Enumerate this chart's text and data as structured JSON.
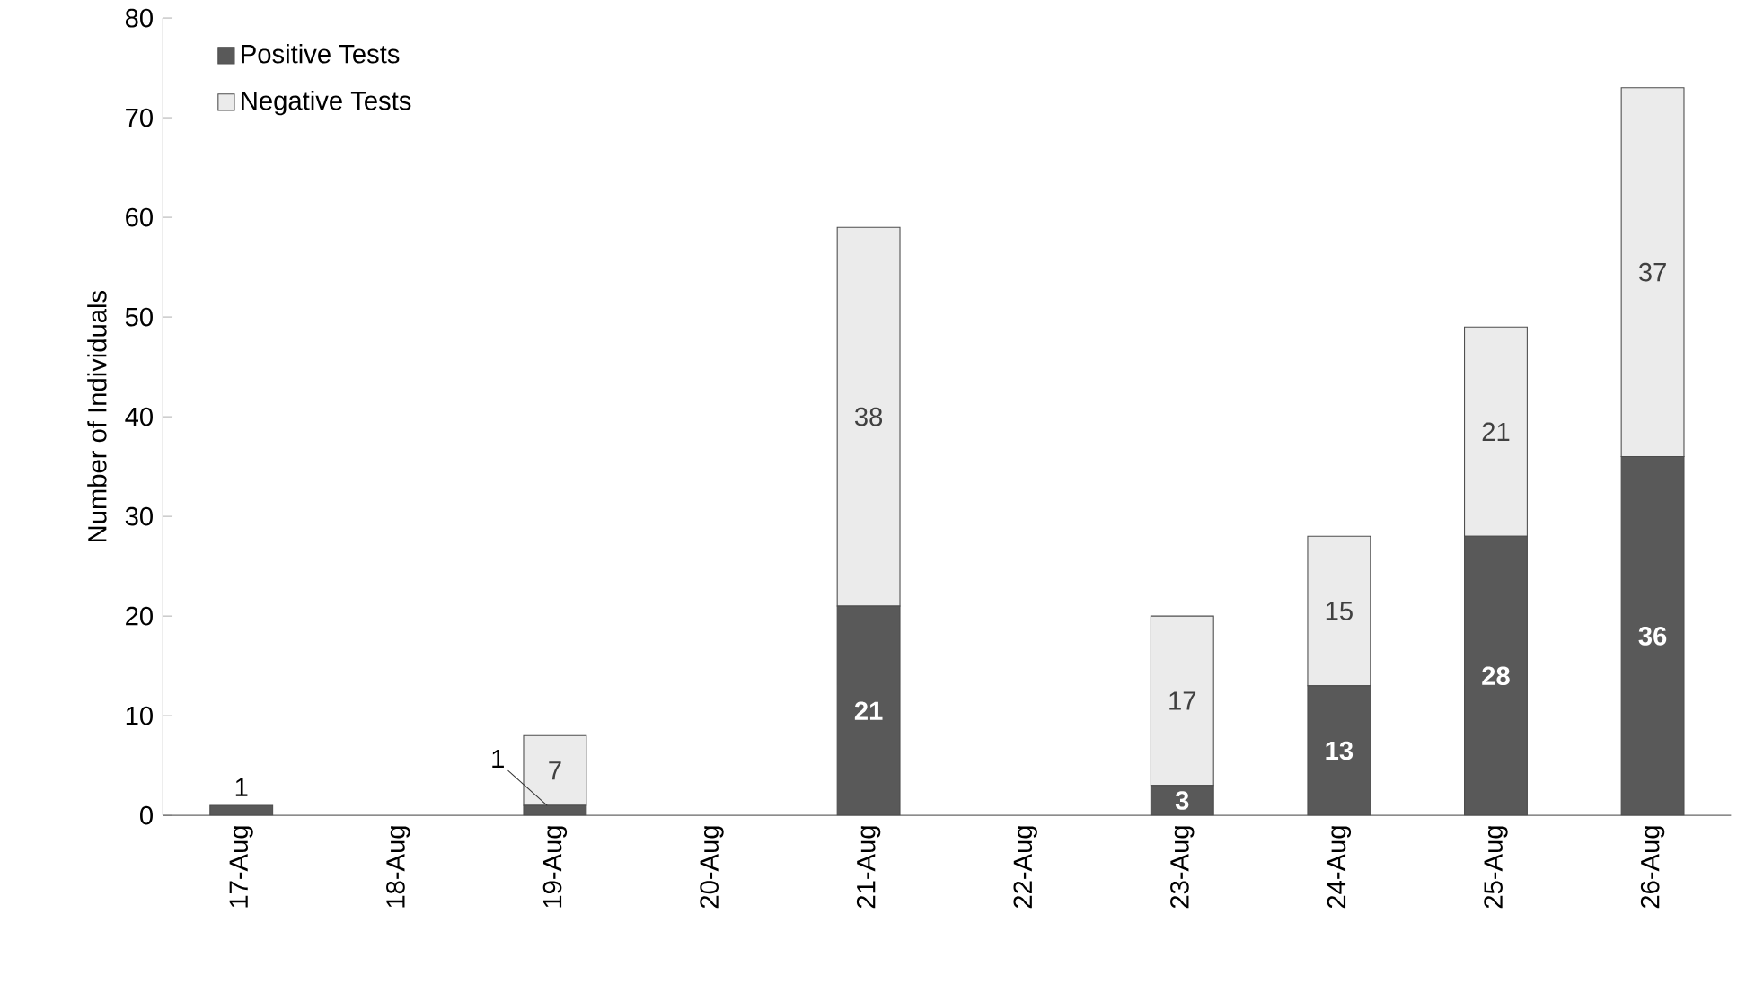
{
  "chart_data": {
    "type": "bar",
    "stacked": true,
    "ylabel": "Number of Individuals",
    "categories": [
      "17-Aug",
      "18-Aug",
      "19-Aug",
      "20-Aug",
      "21-Aug",
      "22-Aug",
      "23-Aug",
      "24-Aug",
      "25-Aug",
      "26-Aug"
    ],
    "series": [
      {
        "name": "Positive Tests",
        "color": "#595959",
        "values": [
          1,
          0,
          1,
          0,
          21,
          0,
          3,
          13,
          28,
          36
        ],
        "value_labels": [
          "1",
          null,
          "1",
          null,
          "21",
          null,
          "3",
          "13",
          "28",
          "36"
        ]
      },
      {
        "name": "Negative Tests",
        "color": "#ebebeb",
        "values": [
          0,
          0,
          7,
          0,
          38,
          0,
          17,
          15,
          21,
          37
        ],
        "value_labels": [
          null,
          null,
          "7",
          null,
          "38",
          null,
          "17",
          "15",
          "21",
          "37"
        ]
      }
    ],
    "ylim": [
      0,
      80
    ],
    "yticks": [
      0,
      10,
      20,
      30,
      40,
      50,
      60,
      70,
      80
    ],
    "grid": false,
    "legend": "top left"
  }
}
